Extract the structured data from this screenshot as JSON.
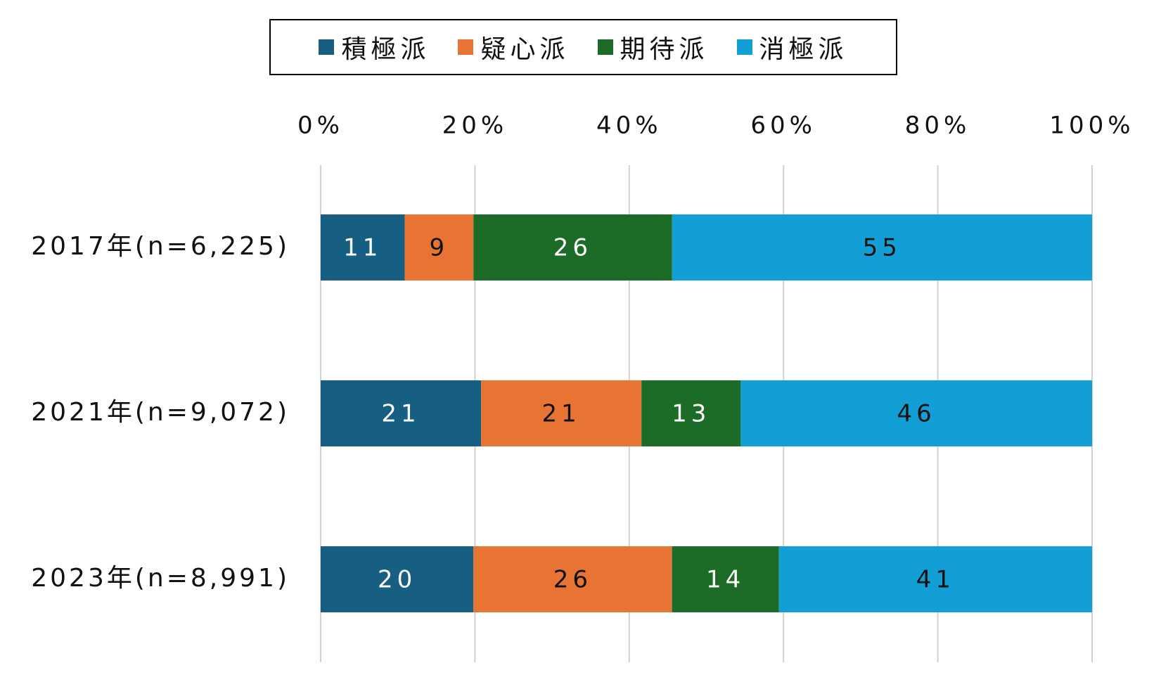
{
  "chart_data": {
    "type": "bar",
    "orientation": "horizontal",
    "stacked": true,
    "categories": [
      "2017年(n=6,225)",
      "2021年(n=9,072)",
      "2023年(n=8,991)"
    ],
    "series": [
      {
        "name": "積極派",
        "values": [
          11,
          21,
          20
        ],
        "color": "#175f82",
        "label_color": "#ffffff"
      },
      {
        "name": "疑心派",
        "values": [
          9,
          21,
          26
        ],
        "color": "#e87434",
        "label_color": "#111111"
      },
      {
        "name": "期待派",
        "values": [
          26,
          13,
          14
        ],
        "color": "#1c6b26",
        "label_color": "#ffffff"
      },
      {
        "name": "消極派",
        "values": [
          55,
          46,
          41
        ],
        "color": "#119fd6",
        "label_color": "#111111"
      }
    ],
    "x_ticks": [
      "0%",
      "20%",
      "40%",
      "60%",
      "80%",
      "100%"
    ],
    "xlim": [
      0,
      100
    ],
    "grid": true,
    "legend_position": "top"
  }
}
